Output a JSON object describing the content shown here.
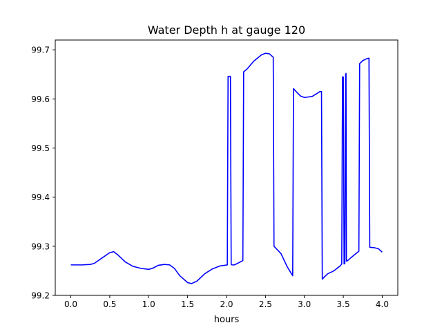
{
  "chart_data": {
    "type": "line",
    "title": "Water Depth h at gauge 120",
    "xlabel": "hours",
    "ylabel": "",
    "xlim": [
      -0.2,
      4.2
    ],
    "ylim": [
      99.2,
      99.72
    ],
    "xticks": [
      0.0,
      0.5,
      1.0,
      1.5,
      2.0,
      2.5,
      3.0,
      3.5,
      4.0
    ],
    "xtick_labels": [
      "0.0",
      "0.5",
      "1.0",
      "1.5",
      "2.0",
      "2.5",
      "3.0",
      "3.5",
      "4.0"
    ],
    "yticks": [
      99.2,
      99.3,
      99.4,
      99.5,
      99.6,
      99.7
    ],
    "ytick_labels": [
      "99.2",
      "99.3",
      "99.4",
      "99.5",
      "99.6",
      "99.7"
    ],
    "grid": false,
    "legend": "none",
    "series": [
      {
        "color": "#0000ff",
        "x": [
          0.0,
          0.15,
          0.25,
          0.3,
          0.4,
          0.5,
          0.55,
          0.6,
          0.7,
          0.8,
          0.9,
          1.0,
          1.05,
          1.12,
          1.2,
          1.27,
          1.33,
          1.4,
          1.5,
          1.55,
          1.62,
          1.72,
          1.82,
          1.92,
          2.01,
          2.02,
          2.03,
          2.05,
          2.06,
          2.07,
          2.1,
          2.14,
          2.2,
          2.21,
          2.22,
          2.27,
          2.35,
          2.45,
          2.5,
          2.55,
          2.6,
          2.61,
          2.7,
          2.78,
          2.85,
          2.86,
          2.9,
          2.95,
          3.0,
          3.1,
          3.2,
          3.22,
          3.23,
          3.26,
          3.3,
          3.38,
          3.46,
          3.48,
          3.49,
          3.5,
          3.51,
          3.52,
          3.53,
          3.535,
          3.54,
          3.55,
          3.6,
          3.7,
          3.71,
          3.75,
          3.8,
          3.83,
          3.84,
          3.9,
          3.95,
          4.0
        ],
        "y": [
          99.262,
          99.262,
          99.263,
          99.265,
          99.276,
          99.287,
          99.289,
          99.283,
          99.268,
          99.259,
          99.255,
          99.253,
          99.255,
          99.261,
          99.263,
          99.262,
          99.255,
          99.24,
          99.226,
          99.224,
          99.229,
          99.244,
          99.254,
          99.26,
          99.262,
          99.646,
          99.646,
          99.646,
          99.263,
          99.262,
          99.262,
          99.265,
          99.27,
          99.271,
          99.655,
          99.662,
          99.677,
          99.69,
          99.693,
          99.692,
          99.685,
          99.3,
          99.285,
          99.258,
          99.24,
          99.621,
          99.614,
          99.606,
          99.603,
          99.605,
          99.615,
          99.615,
          99.233,
          99.238,
          99.244,
          99.25,
          99.26,
          99.264,
          99.645,
          99.645,
          99.264,
          99.265,
          99.65,
          99.652,
          99.27,
          99.27,
          99.277,
          99.29,
          99.672,
          99.678,
          99.682,
          99.683,
          99.298,
          99.297,
          99.295,
          99.288
        ]
      }
    ]
  }
}
